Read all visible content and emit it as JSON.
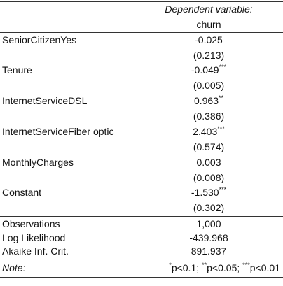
{
  "header": {
    "dependent_variable": "Dependent variable:",
    "model": "churn"
  },
  "rows": [
    {
      "label": "SeniorCitizenYes",
      "coef": "-0.025",
      "stars": "",
      "se": "(0.213)"
    },
    {
      "label": "Tenure",
      "coef": "-0.049",
      "stars": "***",
      "se": "(0.005)"
    },
    {
      "label": "InternetServiceDSL",
      "coef": "0.963",
      "stars": "**",
      "se": "(0.386)"
    },
    {
      "label": "InternetServiceFiber optic",
      "coef": "2.403",
      "stars": "***",
      "se": "(0.574)"
    },
    {
      "label": "MonthlyCharges",
      "coef": "0.003",
      "stars": "",
      "se": "(0.008)"
    },
    {
      "label": "Constant",
      "coef": "-1.530",
      "stars": "***",
      "se": "(0.302)"
    }
  ],
  "stats": [
    {
      "label": "Observations",
      "value": "1,000"
    },
    {
      "label": "Log Likelihood",
      "value": "-439.968"
    },
    {
      "label": "Akaike Inf. Crit.",
      "value": "891.937"
    }
  ],
  "note": {
    "label": "Note:",
    "items": [
      {
        "stars": "*",
        "text": "p<0.1;"
      },
      {
        "stars": "**",
        "text": "p<0.05;"
      },
      {
        "stars": "***",
        "text": "p<0.01"
      }
    ]
  }
}
